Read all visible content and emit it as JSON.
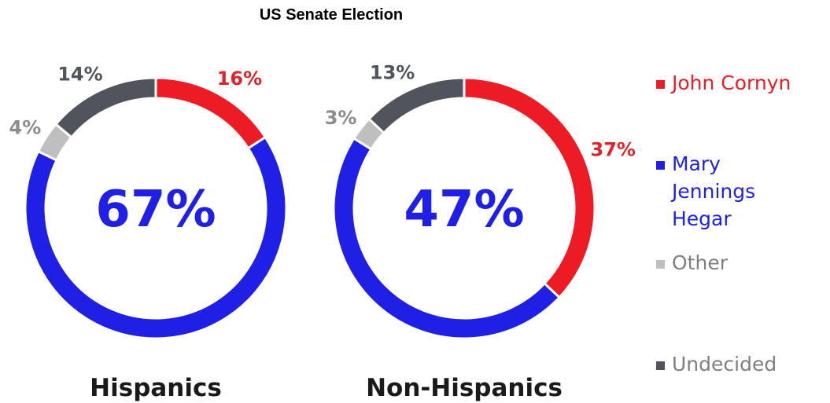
{
  "chart_data": {
    "type": "pie",
    "variant": "donut",
    "title": "US Senate Election",
    "legend_position": "right",
    "colors": {
      "John Cornyn": "#ed1c24",
      "Mary Jennings Hegar": "#1f1fe6",
      "Other": "#bfbfbf",
      "Undecided": "#50545c"
    },
    "series_order": [
      "John Cornyn",
      "Mary Jennings Hegar",
      "Other",
      "Undecided"
    ],
    "legend": [
      "John Cornyn",
      "Mary Jennings Hegar",
      "Other",
      "Undecided"
    ],
    "charts": [
      {
        "category": "Hispanics",
        "center_label": "67%",
        "values": {
          "John Cornyn": 16,
          "Mary Jennings Hegar": 67,
          "Other": 4,
          "Undecided": 14
        },
        "labels": {
          "John Cornyn": "16%",
          "Other": "4%",
          "Undecided": "14%"
        }
      },
      {
        "category": "Non-Hispanics",
        "center_label": "47%",
        "values": {
          "John Cornyn": 37,
          "Mary Jennings Hegar": 47,
          "Other": 3,
          "Undecided": 13
        },
        "labels": {
          "John Cornyn": "37%",
          "Other": "3%",
          "Undecided": "13%"
        }
      }
    ]
  }
}
